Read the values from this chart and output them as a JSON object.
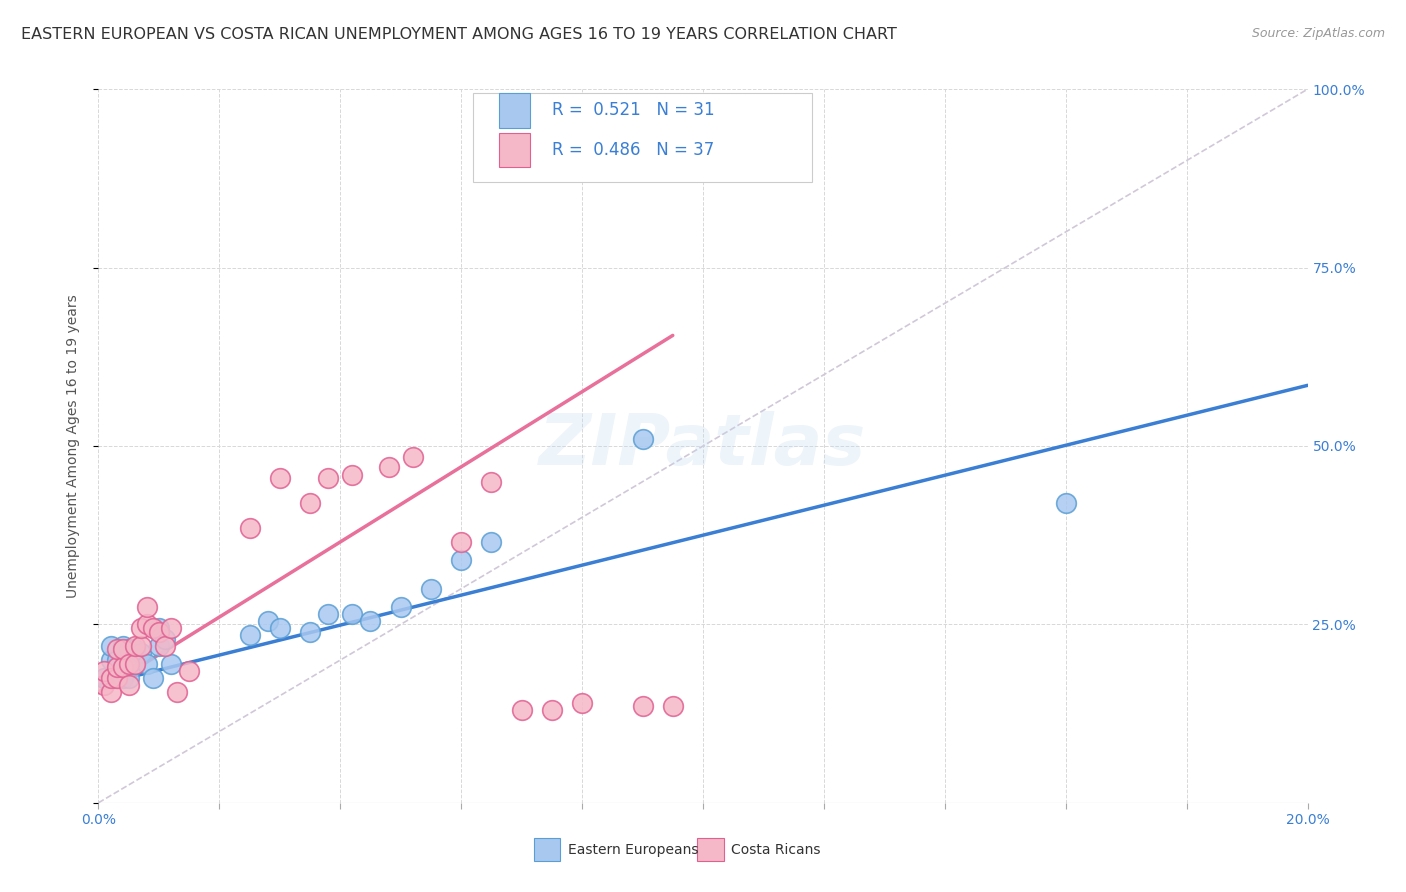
{
  "title": "EASTERN EUROPEAN VS COSTA RICAN UNEMPLOYMENT AMONG AGES 16 TO 19 YEARS CORRELATION CHART",
  "source": "Source: ZipAtlas.com",
  "ylabel": "Unemployment Among Ages 16 to 19 years",
  "xlim": [
    0.0,
    0.2
  ],
  "ylim": [
    0.0,
    1.0
  ],
  "xticks": [
    0.0,
    0.02,
    0.04,
    0.06,
    0.08,
    0.1,
    0.12,
    0.14,
    0.16,
    0.18,
    0.2
  ],
  "yticks": [
    0.0,
    0.25,
    0.5,
    0.75,
    1.0
  ],
  "background_color": "#ffffff",
  "grid_color": "#d8d8d8",
  "watermark": "ZIPatlas",
  "ee_x": [
    0.001,
    0.002,
    0.002,
    0.003,
    0.003,
    0.004,
    0.004,
    0.005,
    0.005,
    0.006,
    0.006,
    0.007,
    0.008,
    0.009,
    0.01,
    0.01,
    0.011,
    0.012,
    0.025,
    0.028,
    0.03,
    0.035,
    0.038,
    0.042,
    0.045,
    0.05,
    0.055,
    0.06,
    0.065,
    0.09,
    0.16
  ],
  "ee_y": [
    0.175,
    0.2,
    0.22,
    0.175,
    0.2,
    0.175,
    0.22,
    0.175,
    0.215,
    0.195,
    0.215,
    0.21,
    0.195,
    0.175,
    0.22,
    0.245,
    0.23,
    0.195,
    0.235,
    0.255,
    0.245,
    0.24,
    0.265,
    0.265,
    0.255,
    0.275,
    0.3,
    0.34,
    0.365,
    0.51,
    0.42
  ],
  "ee_color": "#a8c8f0",
  "ee_edge": "#5a9fd4",
  "ee_R": 0.521,
  "ee_N": 31,
  "ee_line_color": "#3a7fd4",
  "ee_line_x0": 0.0,
  "ee_line_y0": 0.165,
  "ee_line_x1": 0.2,
  "ee_line_y1": 0.585,
  "cr_x": [
    0.001,
    0.001,
    0.002,
    0.002,
    0.003,
    0.003,
    0.003,
    0.004,
    0.004,
    0.005,
    0.005,
    0.006,
    0.006,
    0.007,
    0.007,
    0.008,
    0.008,
    0.009,
    0.01,
    0.011,
    0.012,
    0.013,
    0.015,
    0.025,
    0.03,
    0.035,
    0.038,
    0.042,
    0.048,
    0.052,
    0.06,
    0.065,
    0.07,
    0.075,
    0.08,
    0.09,
    0.095
  ],
  "cr_y": [
    0.165,
    0.185,
    0.155,
    0.175,
    0.175,
    0.19,
    0.215,
    0.19,
    0.215,
    0.165,
    0.195,
    0.195,
    0.22,
    0.22,
    0.245,
    0.25,
    0.275,
    0.245,
    0.24,
    0.22,
    0.245,
    0.155,
    0.185,
    0.385,
    0.455,
    0.42,
    0.455,
    0.46,
    0.47,
    0.485,
    0.365,
    0.45,
    0.13,
    0.13,
    0.14,
    0.135,
    0.135
  ],
  "cr_color": "#f5b8c8",
  "cr_edge": "#e06090",
  "cr_R": 0.486,
  "cr_N": 37,
  "cr_line_color": "#e8709a",
  "cr_line_x0": 0.0,
  "cr_line_y0": 0.155,
  "cr_line_x1": 0.095,
  "cr_line_y1": 0.655,
  "diag_color": "#d0c8d8",
  "diag_linestyle": "--",
  "legend_text_color": "#333333",
  "legend_val_color": "#3a7fd4",
  "title_fontsize": 11.5,
  "axis_label_fontsize": 10,
  "tick_fontsize": 10,
  "tick_color": "#3a7fd4",
  "source_color": "#999999"
}
